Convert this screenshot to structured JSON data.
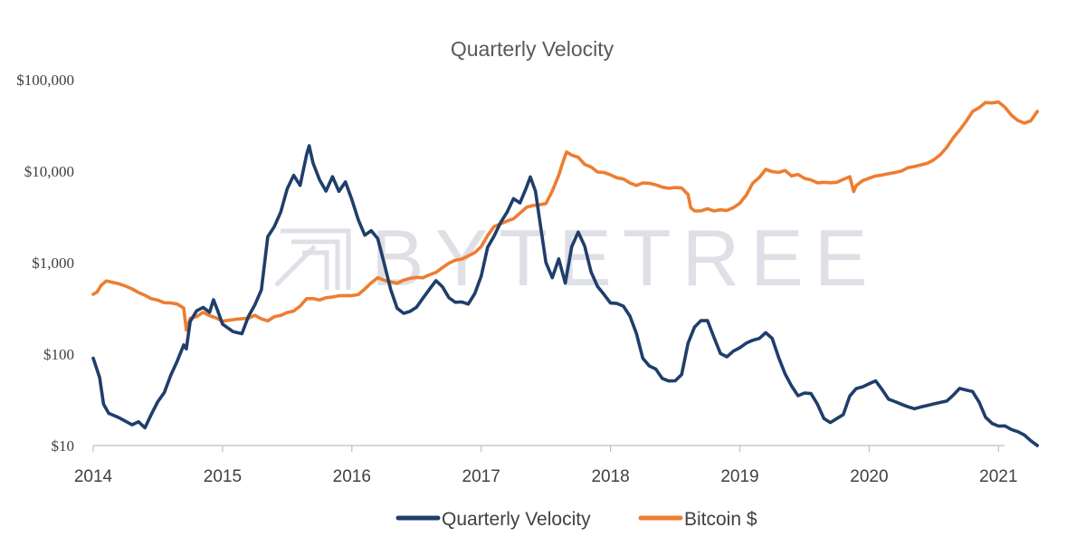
{
  "chart_data": {
    "type": "line",
    "title": "Quarterly Velocity",
    "watermark": "BYTETREE",
    "y_scale": "log",
    "ylim": [
      10,
      100000
    ],
    "y_ticks": [
      {
        "value": 100000,
        "label": "$100,000"
      },
      {
        "value": 10000,
        "label": "$10,000"
      },
      {
        "value": 1000,
        "label": "$1,000"
      },
      {
        "value": 100,
        "label": "$100"
      },
      {
        "value": 10,
        "label": "$10"
      }
    ],
    "xlim": [
      2014.0,
      2021.3
    ],
    "x_ticks": [
      {
        "value": 2014,
        "label": "2014"
      },
      {
        "value": 2015,
        "label": "2015"
      },
      {
        "value": 2016,
        "label": "2016"
      },
      {
        "value": 2017,
        "label": "2017"
      },
      {
        "value": 2018,
        "label": "2018"
      },
      {
        "value": 2019,
        "label": "2019"
      },
      {
        "value": 2020,
        "label": "2020"
      },
      {
        "value": 2021,
        "label": "2021"
      }
    ],
    "grid": false,
    "legend_position": "bottom",
    "series": [
      {
        "name": "Quarterly Velocity",
        "color": "#1f3e6b",
        "points": [
          [
            2014.0,
            90
          ],
          [
            2014.05,
            55
          ],
          [
            2014.08,
            28
          ],
          [
            2014.12,
            23
          ],
          [
            2014.2,
            20
          ],
          [
            2014.3,
            17
          ],
          [
            2014.35,
            18
          ],
          [
            2014.4,
            16
          ],
          [
            2014.45,
            22
          ],
          [
            2014.5,
            30
          ],
          [
            2014.55,
            38
          ],
          [
            2014.6,
            60
          ],
          [
            2014.65,
            85
          ],
          [
            2014.7,
            125
          ],
          [
            2014.72,
            115
          ],
          [
            2014.75,
            230
          ],
          [
            2014.8,
            290
          ],
          [
            2014.85,
            330
          ],
          [
            2014.9,
            290
          ],
          [
            2014.93,
            400
          ],
          [
            2014.96,
            300
          ],
          [
            2015.0,
            210
          ],
          [
            2015.08,
            175
          ],
          [
            2015.15,
            170
          ],
          [
            2015.2,
            260
          ],
          [
            2015.25,
            350
          ],
          [
            2015.3,
            500
          ],
          [
            2015.35,
            1900
          ],
          [
            2015.4,
            2500
          ],
          [
            2015.45,
            3500
          ],
          [
            2015.5,
            6500
          ],
          [
            2015.55,
            9000
          ],
          [
            2015.6,
            7000
          ],
          [
            2015.65,
            15000
          ],
          [
            2015.67,
            19000
          ],
          [
            2015.7,
            12000
          ],
          [
            2015.75,
            8000
          ],
          [
            2015.8,
            6000
          ],
          [
            2015.85,
            8500
          ],
          [
            2015.9,
            6000
          ],
          [
            2015.95,
            7500
          ],
          [
            2016.0,
            5000
          ],
          [
            2016.05,
            3000
          ],
          [
            2016.1,
            2000
          ],
          [
            2016.15,
            2200
          ],
          [
            2016.2,
            1800
          ],
          [
            2016.25,
            1000
          ],
          [
            2016.3,
            500
          ],
          [
            2016.35,
            320
          ],
          [
            2016.4,
            280
          ],
          [
            2016.45,
            290
          ],
          [
            2016.5,
            330
          ],
          [
            2016.55,
            400
          ],
          [
            2016.6,
            500
          ],
          [
            2016.65,
            650
          ],
          [
            2016.7,
            550
          ],
          [
            2016.75,
            420
          ],
          [
            2016.8,
            370
          ],
          [
            2016.85,
            380
          ],
          [
            2016.9,
            360
          ],
          [
            2016.95,
            450
          ],
          [
            2017.0,
            700
          ],
          [
            2017.05,
            1500
          ],
          [
            2017.1,
            2000
          ],
          [
            2017.15,
            2800
          ],
          [
            2017.2,
            3500
          ],
          [
            2017.25,
            5000
          ],
          [
            2017.3,
            4500
          ],
          [
            2017.35,
            6500
          ],
          [
            2017.38,
            8500
          ],
          [
            2017.42,
            6000
          ],
          [
            2017.45,
            3000
          ],
          [
            2017.5,
            1000
          ],
          [
            2017.55,
            700
          ],
          [
            2017.6,
            1100
          ],
          [
            2017.65,
            600
          ],
          [
            2017.7,
            1500
          ],
          [
            2017.75,
            2200
          ],
          [
            2017.8,
            1500
          ],
          [
            2017.85,
            800
          ],
          [
            2017.9,
            550
          ],
          [
            2017.95,
            450
          ],
          [
            2018.0,
            370
          ],
          [
            2018.05,
            350
          ],
          [
            2018.1,
            330
          ],
          [
            2018.15,
            260
          ],
          [
            2018.2,
            170
          ],
          [
            2018.25,
            90
          ],
          [
            2018.3,
            75
          ],
          [
            2018.35,
            70
          ],
          [
            2018.4,
            55
          ],
          [
            2018.45,
            50
          ],
          [
            2018.5,
            50
          ],
          [
            2018.55,
            60
          ],
          [
            2018.6,
            130
          ],
          [
            2018.65,
            200
          ],
          [
            2018.7,
            230
          ],
          [
            2018.75,
            230
          ],
          [
            2018.8,
            150
          ],
          [
            2018.85,
            100
          ],
          [
            2018.9,
            95
          ],
          [
            2018.95,
            110
          ],
          [
            2019.0,
            120
          ],
          [
            2019.05,
            130
          ],
          [
            2019.1,
            140
          ],
          [
            2019.15,
            150
          ],
          [
            2019.2,
            175
          ],
          [
            2019.25,
            150
          ],
          [
            2019.3,
            90
          ],
          [
            2019.35,
            60
          ],
          [
            2019.4,
            45
          ],
          [
            2019.45,
            35
          ],
          [
            2019.5,
            38
          ],
          [
            2019.55,
            37
          ],
          [
            2019.6,
            28
          ],
          [
            2019.65,
            20
          ],
          [
            2019.7,
            18
          ],
          [
            2019.75,
            20
          ],
          [
            2019.8,
            22
          ],
          [
            2019.85,
            35
          ],
          [
            2019.9,
            42
          ],
          [
            2019.95,
            45
          ],
          [
            2020.0,
            48
          ],
          [
            2020.05,
            52
          ],
          [
            2020.1,
            40
          ],
          [
            2020.15,
            32
          ],
          [
            2020.2,
            30
          ],
          [
            2020.25,
            28
          ],
          [
            2020.3,
            26
          ],
          [
            2020.35,
            25
          ],
          [
            2020.4,
            26
          ],
          [
            2020.45,
            27
          ],
          [
            2020.5,
            28
          ],
          [
            2020.55,
            29
          ],
          [
            2020.6,
            30
          ],
          [
            2020.65,
            35
          ],
          [
            2020.7,
            42
          ],
          [
            2020.75,
            40
          ],
          [
            2020.8,
            38
          ],
          [
            2020.85,
            30
          ],
          [
            2020.9,
            20
          ],
          [
            2020.95,
            17
          ],
          [
            2021.0,
            16
          ],
          [
            2021.05,
            16
          ],
          [
            2021.1,
            15
          ],
          [
            2021.15,
            14
          ],
          [
            2021.2,
            13
          ],
          [
            2021.25,
            11
          ],
          [
            2021.3,
            10
          ]
        ]
      },
      {
        "name": "Bitcoin $",
        "color": "#ed7d31",
        "points": [
          [
            2014.0,
            450
          ],
          [
            2014.03,
            480
          ],
          [
            2014.06,
            550
          ],
          [
            2014.1,
            630
          ],
          [
            2014.15,
            620
          ],
          [
            2014.2,
            580
          ],
          [
            2014.25,
            560
          ],
          [
            2014.3,
            520
          ],
          [
            2014.35,
            470
          ],
          [
            2014.4,
            450
          ],
          [
            2014.45,
            400
          ],
          [
            2014.5,
            380
          ],
          [
            2014.55,
            370
          ],
          [
            2014.6,
            360
          ],
          [
            2014.65,
            350
          ],
          [
            2014.7,
            320
          ],
          [
            2014.72,
            180
          ],
          [
            2014.75,
            240
          ],
          [
            2014.8,
            260
          ],
          [
            2014.85,
            280
          ],
          [
            2014.9,
            260
          ],
          [
            2014.95,
            250
          ],
          [
            2015.0,
            230
          ],
          [
            2015.1,
            240
          ],
          [
            2015.2,
            250
          ],
          [
            2015.25,
            260
          ],
          [
            2015.3,
            240
          ],
          [
            2015.35,
            230
          ],
          [
            2015.4,
            250
          ],
          [
            2015.45,
            270
          ],
          [
            2015.5,
            280
          ],
          [
            2015.55,
            300
          ],
          [
            2015.6,
            340
          ],
          [
            2015.65,
            400
          ],
          [
            2015.7,
            410
          ],
          [
            2015.75,
            390
          ],
          [
            2015.8,
            410
          ],
          [
            2015.85,
            420
          ],
          [
            2015.9,
            430
          ],
          [
            2015.95,
            440
          ],
          [
            2016.0,
            430
          ],
          [
            2016.05,
            450
          ],
          [
            2016.1,
            520
          ],
          [
            2016.15,
            600
          ],
          [
            2016.2,
            700
          ],
          [
            2016.25,
            650
          ],
          [
            2016.3,
            620
          ],
          [
            2016.35,
            600
          ],
          [
            2016.4,
            640
          ],
          [
            2016.45,
            660
          ],
          [
            2016.5,
            680
          ],
          [
            2016.55,
            700
          ],
          [
            2016.6,
            730
          ],
          [
            2016.65,
            800
          ],
          [
            2016.7,
            900
          ],
          [
            2016.75,
            1000
          ],
          [
            2016.8,
            1050
          ],
          [
            2016.85,
            1100
          ],
          [
            2016.9,
            1200
          ],
          [
            2016.95,
            1300
          ],
          [
            2017.0,
            1500
          ],
          [
            2017.05,
            2000
          ],
          [
            2017.1,
            2500
          ],
          [
            2017.15,
            2600
          ],
          [
            2017.2,
            2800
          ],
          [
            2017.25,
            3000
          ],
          [
            2017.3,
            3500
          ],
          [
            2017.35,
            4000
          ],
          [
            2017.4,
            4200
          ],
          [
            2017.45,
            4300
          ],
          [
            2017.5,
            4500
          ],
          [
            2017.55,
            6000
          ],
          [
            2017.6,
            9000
          ],
          [
            2017.63,
            12000
          ],
          [
            2017.66,
            16000
          ],
          [
            2017.7,
            15000
          ],
          [
            2017.75,
            14000
          ],
          [
            2017.8,
            12000
          ],
          [
            2017.85,
            11000
          ],
          [
            2017.9,
            10000
          ],
          [
            2017.95,
            9500
          ],
          [
            2018.0,
            9000
          ],
          [
            2018.05,
            8500
          ],
          [
            2018.1,
            8000
          ],
          [
            2018.15,
            7500
          ],
          [
            2018.2,
            7000
          ],
          [
            2018.25,
            7500
          ],
          [
            2018.3,
            7200
          ],
          [
            2018.35,
            7000
          ],
          [
            2018.4,
            6700
          ],
          [
            2018.45,
            6600
          ],
          [
            2018.5,
            6500
          ],
          [
            2018.55,
            6400
          ],
          [
            2018.6,
            5500
          ],
          [
            2018.62,
            4000
          ],
          [
            2018.65,
            3700
          ],
          [
            2018.7,
            3600
          ],
          [
            2018.75,
            3800
          ],
          [
            2018.8,
            3700
          ],
          [
            2018.85,
            3750
          ],
          [
            2018.9,
            3800
          ],
          [
            2018.95,
            4000
          ],
          [
            2019.0,
            4500
          ],
          [
            2019.05,
            5500
          ],
          [
            2019.1,
            7500
          ],
          [
            2019.15,
            8500
          ],
          [
            2019.2,
            10500
          ],
          [
            2019.25,
            10000
          ],
          [
            2019.3,
            9500
          ],
          [
            2019.35,
            10000
          ],
          [
            2019.4,
            9000
          ],
          [
            2019.45,
            9000
          ],
          [
            2019.5,
            8500
          ],
          [
            2019.55,
            8000
          ],
          [
            2019.6,
            7500
          ],
          [
            2019.65,
            7400
          ],
          [
            2019.7,
            7300
          ],
          [
            2019.75,
            7500
          ],
          [
            2019.8,
            8000
          ],
          [
            2019.85,
            8500
          ],
          [
            2019.88,
            6000
          ],
          [
            2019.9,
            7000
          ],
          [
            2019.95,
            8000
          ],
          [
            2020.0,
            8500
          ],
          [
            2020.05,
            9000
          ],
          [
            2020.1,
            9200
          ],
          [
            2020.15,
            9300
          ],
          [
            2020.2,
            9500
          ],
          [
            2020.25,
            10000
          ],
          [
            2020.3,
            11000
          ],
          [
            2020.35,
            11000
          ],
          [
            2020.4,
            11500
          ],
          [
            2020.45,
            12000
          ],
          [
            2020.5,
            13000
          ],
          [
            2020.55,
            15000
          ],
          [
            2020.6,
            18000
          ],
          [
            2020.65,
            23000
          ],
          [
            2020.7,
            28000
          ],
          [
            2020.75,
            35000
          ],
          [
            2020.8,
            45000
          ],
          [
            2020.85,
            50000
          ],
          [
            2020.9,
            55000
          ],
          [
            2020.95,
            57000
          ],
          [
            2021.0,
            58000
          ],
          [
            2021.05,
            50000
          ],
          [
            2021.1,
            40000
          ],
          [
            2021.15,
            35000
          ],
          [
            2021.2,
            33000
          ],
          [
            2021.25,
            35000
          ],
          [
            2021.3,
            45000
          ]
        ]
      }
    ]
  }
}
